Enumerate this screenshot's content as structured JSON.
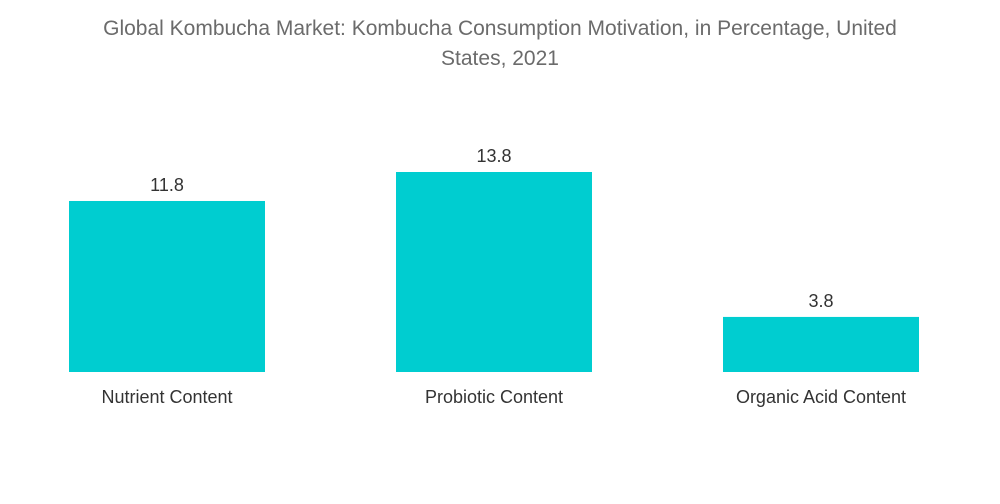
{
  "chart_data": {
    "type": "bar",
    "title_lines": [
      "Global Kombucha Market: Kombucha Consumption Motivation, in Percentage, United",
      "States, 2021"
    ],
    "categories": [
      "Nutrient Content",
      "Probiotic Content",
      "Organic Acid Content"
    ],
    "values": [
      11.8,
      13.8,
      3.8
    ],
    "data_labels": [
      "11.8",
      "13.8",
      "3.8"
    ],
    "bar_color": "#00cdd0",
    "ylim": [
      0,
      13.8
    ],
    "grid": false,
    "legend": "none"
  }
}
